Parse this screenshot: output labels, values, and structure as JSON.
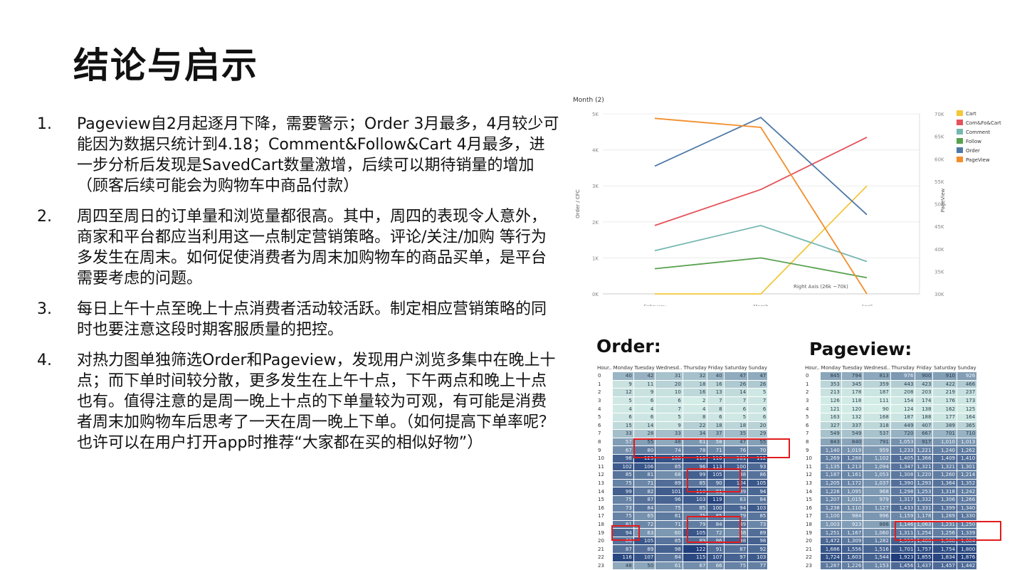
{
  "title": "结论与启示",
  "conclusions": [
    {
      "num": "1.",
      "text": "Pageview自2月起逐月下降，需要警示；Order 3月最多，4月较少可能因为数据只统计到4.18；Comment&Follow&Cart 4月最多，进一步分析后发现是SavedCart数量激增，后续可以期待销量的增加（顾客后续可能会为购物车中商品付款）"
    },
    {
      "num": "2.",
      "text": "周四至周日的订单量和浏览量都很高。其中，周四的表现令人意外，商家和平台都应当利用这一点制定营销策略。评论/关注/加购 等行为多发生在周末。如何促使消费者为周末加购物车的商品买单，是平台需要考虑的问题。"
    },
    {
      "num": "3.",
      "text": "每日上午十点至晚上十点消费者活动较活跃。制定相应营销策略的同时也要注意这段时期客服质量的把控。"
    },
    {
      "num": "4.",
      "text": "对热力图单独筛选Order和Pageview，发现用户浏览多集中在晚上十点；而下单时间较分散，更多发生在上午十点，下午两点和晚上十点也有。值得注意的是周一晚上十点的下单量较为可观，有可能是消费者周末加购物车后思考了一天在周一晚上下单。（如何提高下单率呢？也许可以在用户打开app时推荐“大家都在买的相似好物”）"
    }
  ],
  "chart_data": [
    {
      "type": "line",
      "title": "Month (2)",
      "categories": [
        "February",
        "March",
        "April"
      ],
      "ylabel": "Order / CFC",
      "y2label": "PageView",
      "ylim": [
        0,
        5000
      ],
      "y2lim": [
        30000,
        70000
      ],
      "yticks": [
        "0K",
        "1K",
        "2K",
        "3K",
        "4K",
        "5K"
      ],
      "y2ticks": [
        "30K",
        "35K",
        "40K",
        "45K",
        "50K",
        "55K",
        "60K",
        "65K",
        "70K"
      ],
      "annotation": "Right Axis (26k ~70k)",
      "series": [
        {
          "name": "Cart",
          "color": "#f2c73a",
          "axis": "left",
          "values": [
            0,
            0,
            3000
          ]
        },
        {
          "name": "Com&Fo&Cart",
          "color": "#e4525a",
          "axis": "left",
          "values": [
            1900,
            2900,
            4350
          ]
        },
        {
          "name": "Comment",
          "color": "#76b7b2",
          "axis": "left",
          "values": [
            1200,
            1900,
            900
          ]
        },
        {
          "name": "Follow",
          "color": "#59a14f",
          "axis": "left",
          "values": [
            700,
            1000,
            450
          ]
        },
        {
          "name": "Order",
          "color": "#4e79a7",
          "axis": "left",
          "values": [
            3550,
            4900,
            2200
          ]
        },
        {
          "name": "PageView",
          "color": "#f28e2b",
          "axis": "right",
          "values": [
            69000,
            67000,
            30000
          ]
        }
      ]
    },
    {
      "type": "heatmap",
      "title": "Order:",
      "row_header": "Hour..",
      "columns": [
        "Monday",
        "Tuesday",
        "Wednesd..",
        "Thursday",
        "Friday",
        "Saturday",
        "Sunday"
      ],
      "rows": [
        "0",
        "1",
        "2",
        "3",
        "4",
        "5",
        "6",
        "7",
        "8",
        "9",
        "10",
        "11",
        "12",
        "13",
        "14",
        "15",
        "16",
        "17",
        "18",
        "19",
        "20",
        "21",
        "22",
        "23"
      ],
      "values": [
        [
          40,
          42,
          31,
          32,
          40,
          47,
          47
        ],
        [
          9,
          11,
          20,
          18,
          16,
          26,
          26
        ],
        [
          12,
          9,
          10,
          16,
          13,
          14,
          5
        ],
        [
          5,
          6,
          6,
          2,
          7,
          7,
          7
        ],
        [
          4,
          4,
          7,
          4,
          8,
          6,
          6
        ],
        [
          6,
          6,
          5,
          8,
          6,
          5,
          6
        ],
        [
          15,
          14,
          9,
          22,
          18,
          18,
          20
        ],
        [
          33,
          28,
          33,
          34,
          37,
          35,
          29
        ],
        [
          57,
          55,
          48,
          61,
          58,
          47,
          55
        ],
        [
          67,
          80,
          74,
          78,
          71,
          76,
          70
        ],
        [
          98,
          123,
          108,
          118,
          116,
          101,
          112
        ],
        [
          102,
          106,
          85,
          96,
          113,
          100,
          93
        ],
        [
          85,
          81,
          68,
          99,
          105,
          88,
          86
        ],
        [
          75,
          71,
          89,
          85,
          90,
          104,
          105
        ],
        [
          99,
          82,
          101,
          110,
          81,
          89,
          94
        ],
        [
          75,
          87,
          96,
          103,
          119,
          83,
          84
        ],
        [
          73,
          84,
          75,
          85,
          100,
          94,
          103
        ],
        [
          75,
          65,
          81,
          75,
          85,
          79,
          85
        ],
        [
          81,
          72,
          71,
          79,
          84,
          89,
          73
        ],
        [
          94,
          63,
          60,
          105,
          72,
          68,
          89
        ],
        [
          86,
          105,
          85,
          89,
          86,
          98,
          98
        ],
        [
          87,
          89,
          98,
          122,
          91,
          87,
          92
        ],
        [
          116,
          107,
          84,
          115,
          107,
          97,
          103
        ],
        [
          48,
          50,
          61,
          67,
          66,
          75,
          77
        ]
      ]
    },
    {
      "type": "heatmap",
      "title": "Pageview:",
      "row_header": "Hour..",
      "columns": [
        "Monday",
        "Tuesday",
        "Wednesd..",
        "Thursday",
        "Friday",
        "Saturday",
        "Sunday"
      ],
      "rows": [
        "0",
        "1",
        "2",
        "3",
        "4",
        "5",
        "6",
        "7",
        "8",
        "9",
        "10",
        "11",
        "12",
        "13",
        "14",
        "15",
        "16",
        "17",
        "18",
        "19",
        "20",
        "21",
        "22",
        "23"
      ],
      "values": [
        [
          845,
          794,
          813,
          976,
          900,
          910,
          926
        ],
        [
          353,
          345,
          359,
          443,
          423,
          422,
          466
        ],
        [
          213,
          178,
          187,
          208,
          203,
          219,
          237
        ],
        [
          126,
          118,
          111,
          154,
          174,
          176,
          173
        ],
        [
          121,
          120,
          90,
          124,
          138,
          162,
          125
        ],
        [
          163,
          132,
          168,
          187,
          188,
          177,
          164
        ],
        [
          327,
          337,
          318,
          449,
          407,
          389,
          365
        ],
        [
          549,
          549,
          537,
          720,
          667,
          701,
          710
        ],
        [
          843,
          840,
          791,
          1053,
          917,
          1010,
          1013
        ],
        [
          1140,
          1019,
          959,
          1233,
          1221,
          1240,
          1262
        ],
        [
          1269,
          1288,
          1102,
          1405,
          1366,
          1409,
          1410
        ],
        [
          1135,
          1213,
          1094,
          1347,
          1321,
          1321,
          1301
        ],
        [
          1187,
          1161,
          1053,
          1308,
          1220,
          1260,
          1214
        ],
        [
          1205,
          1172,
          1037,
          1390,
          1293,
          1364,
          1352
        ],
        [
          1226,
          1095,
          968,
          1298,
          1253,
          1318,
          1242
        ],
        [
          1207,
          1015,
          979,
          1317,
          1332,
          1306,
          1266
        ],
        [
          1238,
          1110,
          1127,
          1433,
          1331,
          1399,
          1340
        ],
        [
          1100,
          984,
          996,
          1159,
          1178,
          1269,
          1330
        ],
        [
          1003,
          923,
          886,
          1146,
          1063,
          1231,
          1250
        ],
        [
          1251,
          1167,
          1060,
          1311,
          1254,
          1256,
          1339
        ],
        [
          1472,
          1309,
          1282,
          1553,
          1480,
          1568,
          1604
        ],
        [
          1686,
          1556,
          1516,
          1701,
          1757,
          1754,
          1800
        ],
        [
          1724,
          1603,
          1544,
          1923,
          1855,
          1834,
          1876
        ],
        [
          1287,
          1226,
          1153,
          1456,
          1437,
          1457,
          1442
        ]
      ]
    }
  ]
}
